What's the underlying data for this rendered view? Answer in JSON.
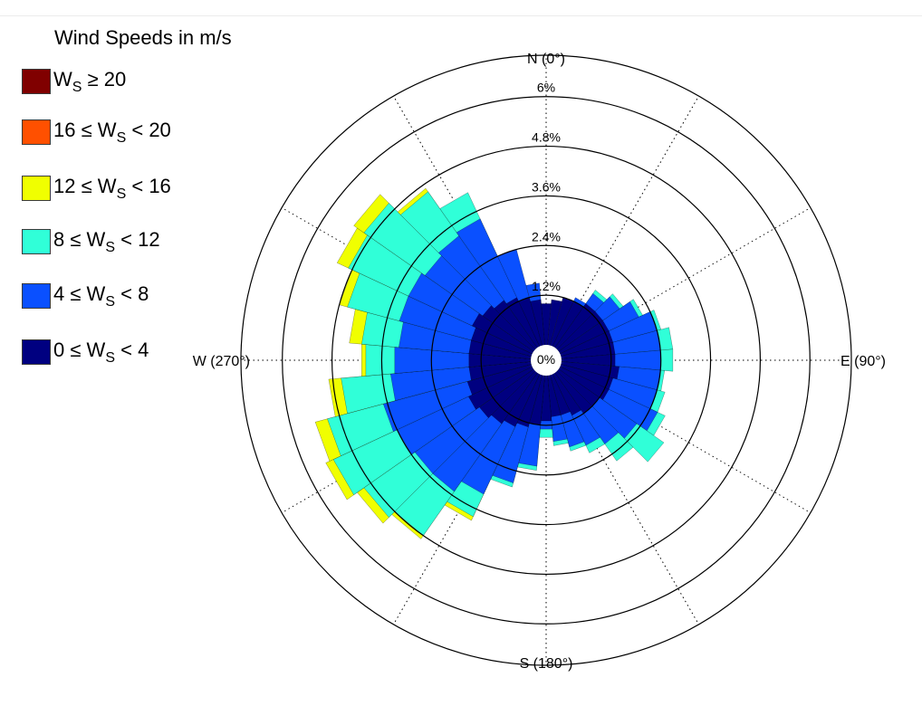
{
  "legend": {
    "title": "Wind Speeds in m/s",
    "items": [
      {
        "lo": "",
        "hi": "20",
        "color": "#800000"
      },
      {
        "lo": "16",
        "hi": "20",
        "color": "#ff5000"
      },
      {
        "lo": "12",
        "hi": "16",
        "color": "#f0ff00"
      },
      {
        "lo": "8",
        "hi": "12",
        "color": "#30ffd8"
      },
      {
        "lo": "4",
        "hi": "8",
        "color": "#0a50ff"
      },
      {
        "lo": "0",
        "hi": "4",
        "color": "#000080"
      }
    ]
  },
  "chart_data": {
    "type": "wind_rose",
    "title": "",
    "axes": {
      "north": "N (0°)",
      "east": "E (90°)",
      "south": "S (180°)",
      "west": "W (270°)"
    },
    "center_label": "0%",
    "radial_ticks": [
      1.2,
      2.4,
      3.6,
      4.8,
      6
    ],
    "radial_tick_labels": [
      "1.2%",
      "2.4%",
      "3.6%",
      "4.8%",
      "6%"
    ],
    "rmax": 7.0,
    "grid": true,
    "legend_position": "top-left",
    "sector_width_deg": 10,
    "directions_deg": [
      0,
      10,
      20,
      30,
      40,
      50,
      60,
      70,
      80,
      90,
      100,
      110,
      120,
      130,
      140,
      150,
      160,
      170,
      180,
      190,
      200,
      210,
      220,
      230,
      240,
      250,
      260,
      270,
      280,
      290,
      300,
      310,
      320,
      330,
      340,
      350
    ],
    "bin_order": [
      "0-4",
      "4-8",
      "8-12",
      "12-16",
      "16-20",
      ">=20"
    ],
    "cumulative_percent": [
      [
        1.0,
        1.0,
        1.0,
        1.0,
        1.0,
        1.0
      ],
      [
        1.1,
        1.1,
        1.1,
        1.1,
        1.1,
        1.1
      ],
      [
        1.2,
        1.2,
        1.2,
        1.2,
        1.2,
        1.2
      ],
      [
        1.2,
        1.3,
        1.3,
        1.3,
        1.3,
        1.3
      ],
      [
        1.3,
        1.6,
        1.7,
        1.7,
        1.7,
        1.7
      ],
      [
        1.3,
        1.8,
        1.9,
        1.9,
        1.9,
        1.9
      ],
      [
        1.3,
        2.1,
        2.2,
        2.2,
        2.2,
        2.2
      ],
      [
        1.3,
        2.4,
        2.5,
        2.5,
        2.5,
        2.5
      ],
      [
        1.3,
        2.4,
        2.7,
        2.7,
        2.7,
        2.7
      ],
      [
        1.3,
        2.4,
        2.7,
        2.7,
        2.7,
        2.7
      ],
      [
        1.4,
        2.4,
        2.5,
        2.5,
        2.5,
        2.5
      ],
      [
        1.3,
        2.4,
        2.6,
        2.6,
        2.6,
        2.6
      ],
      [
        1.3,
        2.6,
        2.8,
        2.8,
        2.8,
        2.8
      ],
      [
        1.2,
        2.3,
        3.1,
        3.1,
        3.1,
        3.1
      ],
      [
        1.2,
        2.1,
        2.6,
        2.6,
        2.6,
        2.6
      ],
      [
        1.1,
        1.9,
        2.1,
        2.1,
        2.1,
        2.1
      ],
      [
        1.0,
        1.8,
        1.9,
        1.9,
        1.9,
        1.9
      ],
      [
        1.0,
        1.6,
        1.7,
        1.7,
        1.7,
        1.7
      ],
      [
        1.1,
        1.3,
        1.5,
        1.5,
        1.5,
        1.5
      ],
      [
        1.2,
        2.2,
        2.3,
        2.3,
        2.3,
        2.3
      ],
      [
        1.3,
        2.7,
        2.8,
        2.8,
        2.8,
        2.8
      ],
      [
        1.4,
        3.2,
        3.8,
        3.9,
        3.9,
        3.9
      ],
      [
        1.5,
        3.5,
        4.8,
        4.9,
        4.9,
        4.9
      ],
      [
        1.6,
        3.5,
        5.0,
        5.2,
        5.2,
        5.2
      ],
      [
        1.7,
        3.6,
        5.3,
        5.5,
        5.5,
        5.5
      ],
      [
        1.6,
        3.7,
        5.1,
        5.4,
        5.4,
        5.4
      ],
      [
        1.5,
        3.4,
        4.6,
        4.9,
        4.9,
        4.9
      ],
      [
        1.5,
        3.3,
        4.0,
        4.1,
        4.1,
        4.1
      ],
      [
        1.5,
        3.2,
        4.1,
        4.4,
        4.4,
        4.4
      ],
      [
        1.5,
        3.3,
        4.6,
        4.8,
        4.8,
        4.8
      ],
      [
        1.6,
        3.3,
        4.9,
        5.2,
        5.2,
        5.2
      ],
      [
        1.5,
        3.2,
        5.0,
        5.3,
        5.3,
        5.3
      ],
      [
        1.4,
        3.3,
        4.6,
        4.7,
        4.7,
        4.7
      ],
      [
        1.3,
        3.4,
        4.1,
        4.1,
        4.1,
        4.1
      ],
      [
        1.2,
        2.4,
        2.4,
        2.4,
        2.4,
        2.4
      ],
      [
        1.1,
        1.5,
        1.5,
        1.5,
        1.5,
        1.5
      ]
    ]
  }
}
